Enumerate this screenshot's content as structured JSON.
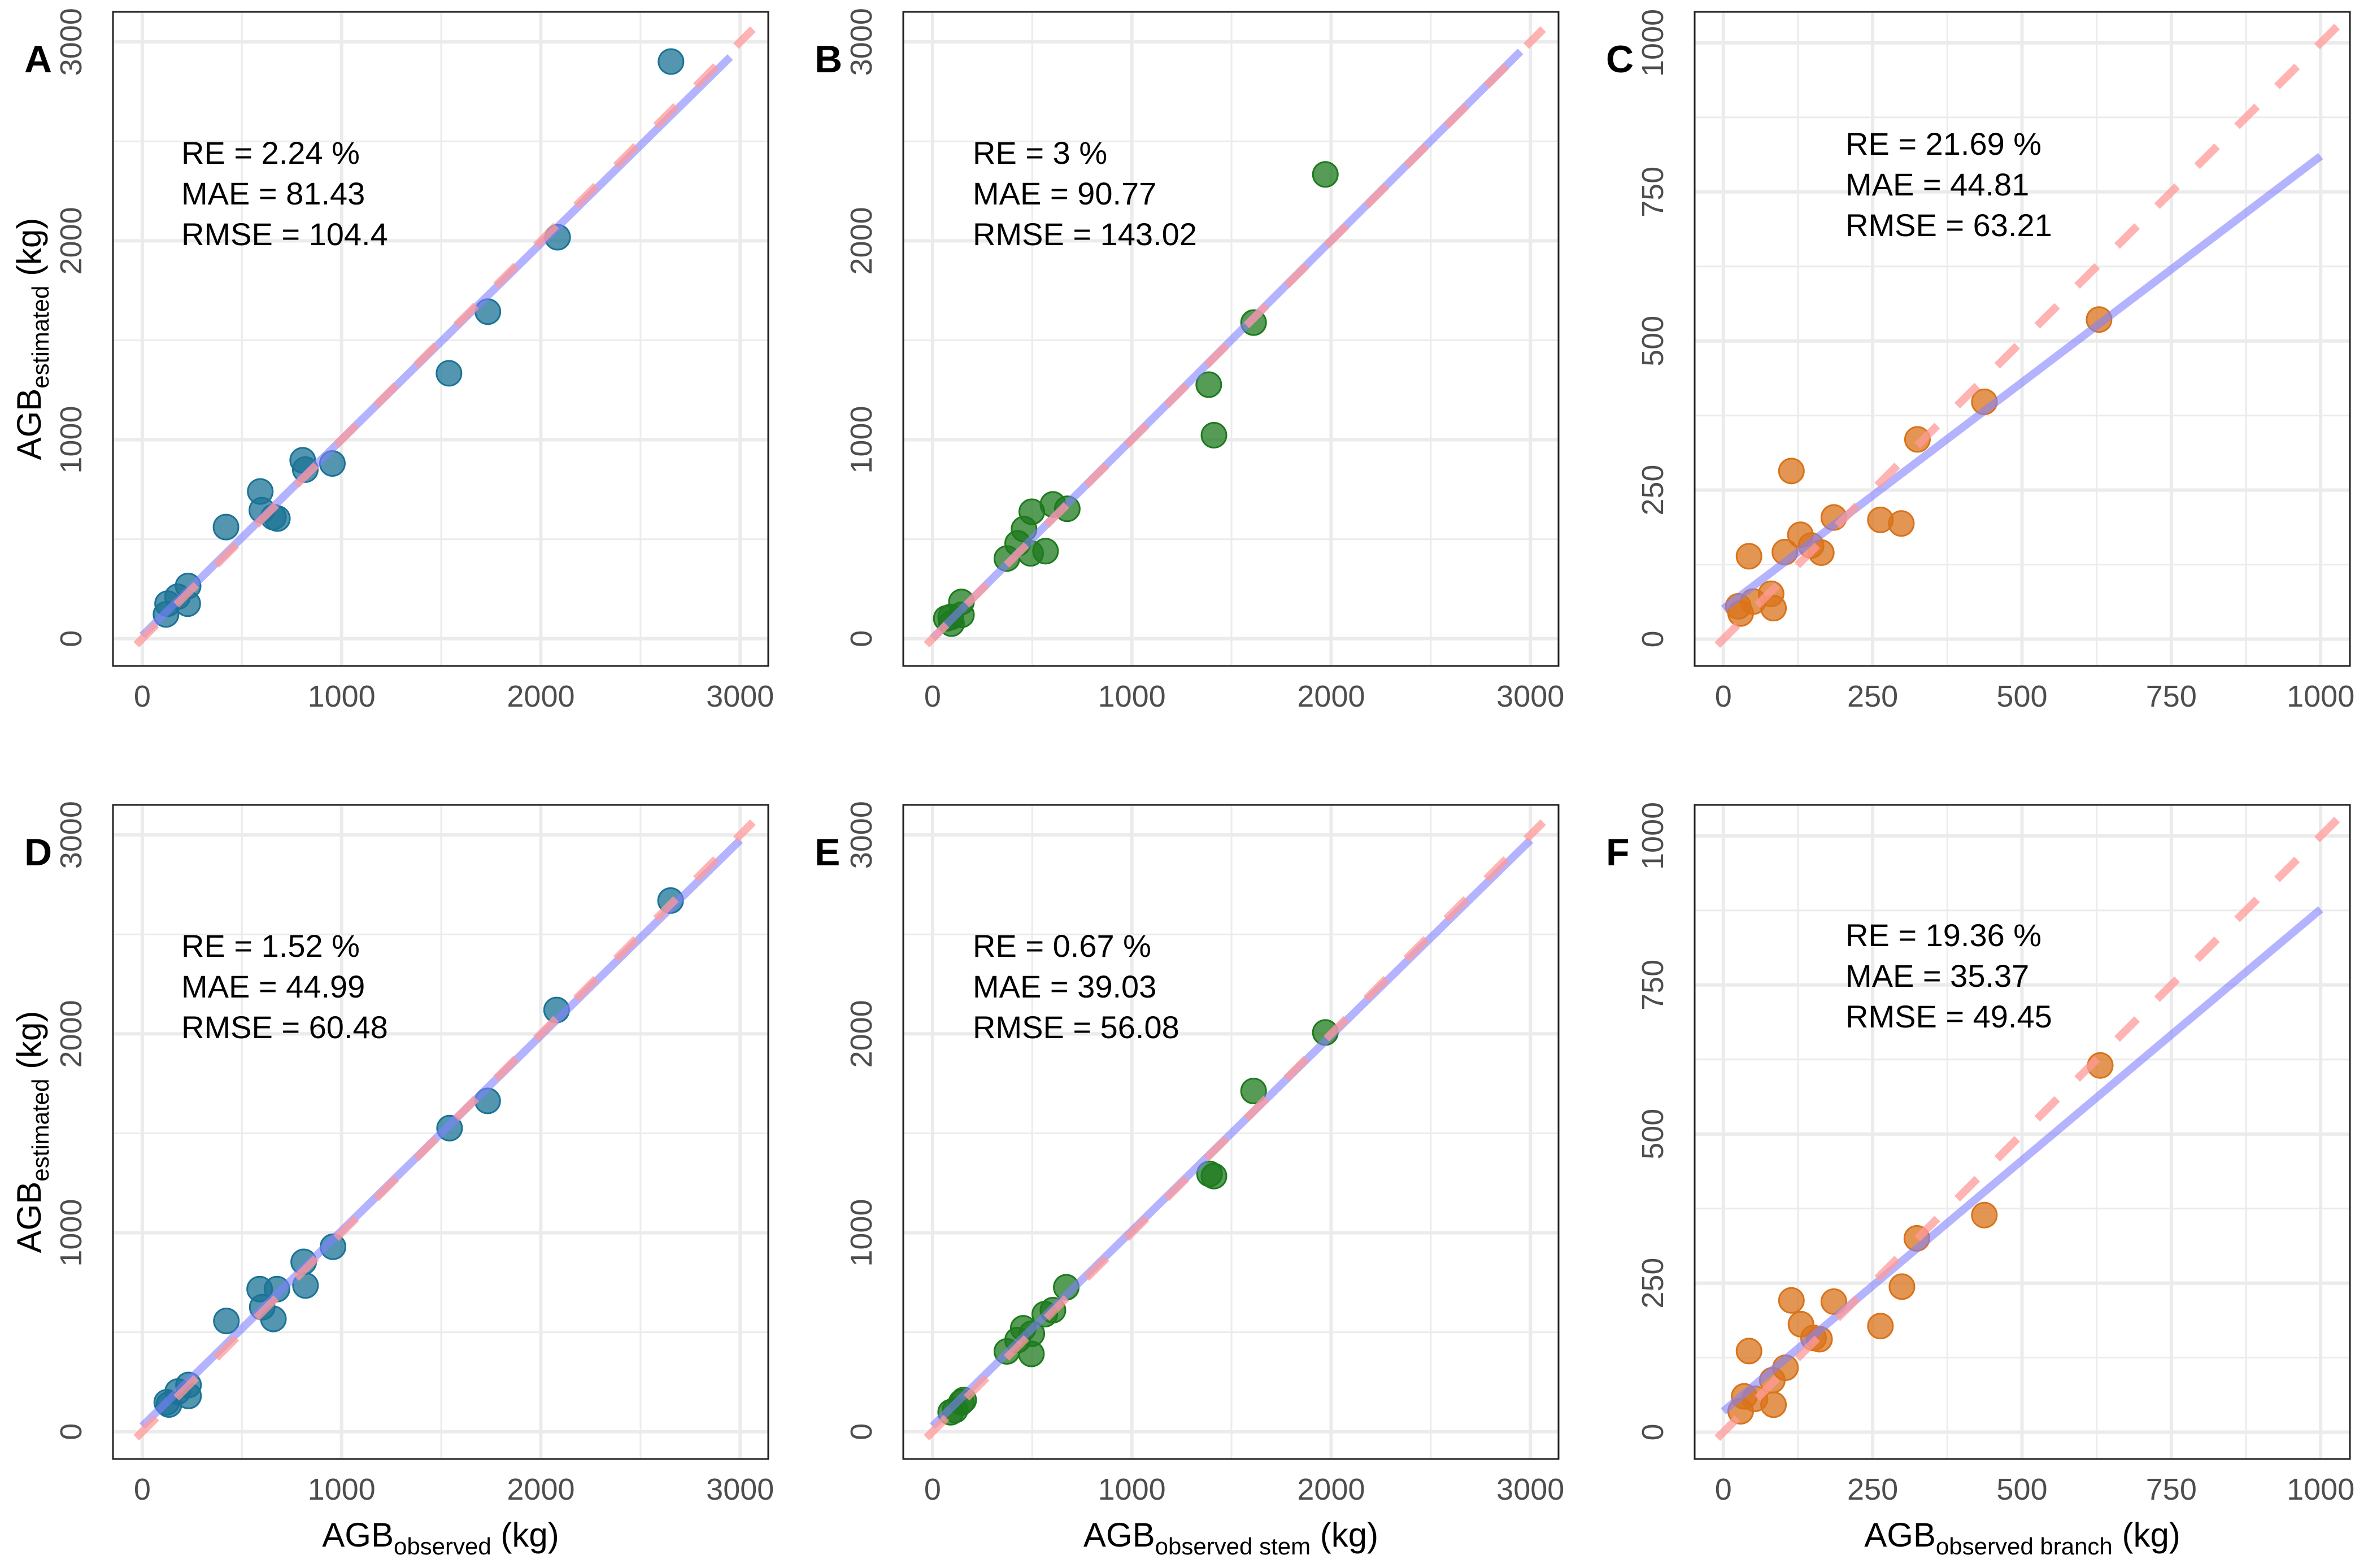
{
  "chart_data": [
    {
      "panel": "A",
      "type": "scatter",
      "xlim": [
        -147,
        3141
      ],
      "ylim": [
        -137,
        3151
      ],
      "xticks": [
        0,
        1000,
        2000,
        3000
      ],
      "yticks": [
        0,
        1000,
        2000,
        3000
      ],
      "xtick_labels": [
        "0",
        "1000",
        "2000",
        "3000"
      ],
      "ytick_labels": [
        "0",
        "1000",
        "2000",
        "3000"
      ],
      "grid": true,
      "point_color": "#1b7396",
      "points": [
        [
          2653,
          2901
        ],
        [
          2084,
          2018
        ],
        [
          1734,
          1644
        ],
        [
          1539,
          1334
        ],
        [
          954,
          881
        ],
        [
          805,
          897
        ],
        [
          818,
          850
        ],
        [
          592,
          740
        ],
        [
          600,
          646
        ],
        [
          658,
          611
        ],
        [
          678,
          604
        ],
        [
          420,
          561
        ],
        [
          230,
          265
        ],
        [
          228,
          176
        ],
        [
          127,
          176
        ],
        [
          177,
          211
        ],
        [
          119,
          122
        ]
      ],
      "fit_line": {
        "intercept": 15,
        "slope": 0.986,
        "x_range": [
          0,
          2950
        ]
      },
      "identity_line": {
        "x_range": [
          -30,
          3064
        ]
      },
      "annotations": [
        "RE = 2.24  %",
        "MAE = 81.43",
        "RMSE =  104.4"
      ],
      "ylabel": {
        "main": "AGB",
        "sub": "estimated",
        "unit": " (kg)"
      }
    },
    {
      "panel": "B",
      "type": "scatter",
      "xlim": [
        -147,
        3141
      ],
      "ylim": [
        -137,
        3151
      ],
      "xticks": [
        0,
        1000,
        2000,
        3000
      ],
      "yticks": [
        0,
        1000,
        2000,
        3000
      ],
      "xtick_labels": [
        "0",
        "1000",
        "2000",
        "3000"
      ],
      "ytick_labels": [
        "0",
        "1000",
        "2000",
        "3000"
      ],
      "grid": true,
      "point_color": "#1e7a1e",
      "points": [
        [
          1971,
          2334
        ],
        [
          1611,
          1589
        ],
        [
          1386,
          1277
        ],
        [
          1412,
          1023
        ],
        [
          498,
          638
        ],
        [
          604,
          675
        ],
        [
          676,
          653
        ],
        [
          459,
          551
        ],
        [
          427,
          479
        ],
        [
          373,
          403
        ],
        [
          492,
          429
        ],
        [
          567,
          440
        ],
        [
          145,
          185
        ],
        [
          91,
          109
        ],
        [
          145,
          120
        ],
        [
          95,
          76
        ],
        [
          69,
          102
        ]
      ],
      "fit_line": {
        "intercept": 2,
        "slope": 1.0,
        "x_range": [
          0,
          2950
        ]
      },
      "identity_line": {
        "x_range": [
          -30,
          3064
        ]
      },
      "annotations": [
        "RE = 3  %",
        "MAE = 90.77",
        "RMSE =  143.02"
      ]
    },
    {
      "panel": "C",
      "type": "scatter",
      "xlim": [
        -48,
        1049
      ],
      "ylim": [
        -45,
        1052
      ],
      "xticks": [
        0,
        250,
        500,
        750,
        1000
      ],
      "yticks": [
        0,
        250,
        500,
        750,
        1000
      ],
      "xtick_labels": [
        "0",
        "250",
        "500",
        "750",
        "1000"
      ],
      "ytick_labels": [
        "0",
        "250",
        "500",
        "750",
        "1000"
      ],
      "grid": true,
      "point_color": "#d9731a",
      "points": [
        [
          629,
          536
        ],
        [
          437,
          398
        ],
        [
          325,
          335
        ],
        [
          114,
          282
        ],
        [
          185,
          204
        ],
        [
          263,
          200
        ],
        [
          298,
          194
        ],
        [
          129,
          175
        ],
        [
          147,
          157
        ],
        [
          164,
          145
        ],
        [
          103,
          146
        ],
        [
          43,
          139
        ],
        [
          80,
          76
        ],
        [
          84,
          52
        ],
        [
          50,
          63
        ],
        [
          29,
          43
        ],
        [
          25,
          55
        ]
      ],
      "fit_line": {
        "intercept": 51,
        "slope": 0.759,
        "x_range": [
          0,
          1000
        ]
      },
      "identity_line": {
        "x_range": [
          -10,
          1030
        ]
      },
      "annotations": [
        "RE = 21.69 %",
        "MAE = 44.81",
        "RMSE =  63.21"
      ]
    },
    {
      "panel": "D",
      "type": "scatter",
      "xlim": [
        -147,
        3141
      ],
      "ylim": [
        -137,
        3151
      ],
      "xticks": [
        0,
        1000,
        2000,
        3000
      ],
      "yticks": [
        0,
        1000,
        2000,
        3000
      ],
      "xtick_labels": [
        "0",
        "1000",
        "2000",
        "3000"
      ],
      "ytick_labels": [
        "0",
        "1000",
        "2000",
        "3000"
      ],
      "grid": true,
      "point_color": "#1b7396",
      "points": [
        [
          2651,
          2670
        ],
        [
          2079,
          2120
        ],
        [
          1733,
          1663
        ],
        [
          1542,
          1526
        ],
        [
          957,
          930
        ],
        [
          810,
          854
        ],
        [
          819,
          735
        ],
        [
          589,
          717
        ],
        [
          676,
          717
        ],
        [
          602,
          626
        ],
        [
          658,
          567
        ],
        [
          422,
          557
        ],
        [
          232,
          235
        ],
        [
          232,
          180
        ],
        [
          178,
          202
        ],
        [
          123,
          148
        ],
        [
          134,
          137
        ]
      ],
      "fit_line": {
        "intercept": 28,
        "slope": 0.982,
        "x_range": [
          0,
          3000
        ]
      },
      "identity_line": {
        "x_range": [
          -30,
          3064
        ]
      },
      "annotations": [
        "RE = 1.52  %",
        "MAE = 44.99",
        "RMSE =  60.48"
      ],
      "xlabel": {
        "main": "AGB",
        "sub": "observed",
        "unit": " (kg)"
      },
      "ylabel": {
        "main": "AGB",
        "sub": "estimated",
        "unit": " (kg)"
      }
    },
    {
      "panel": "E",
      "type": "scatter",
      "xlim": [
        -147,
        3141
      ],
      "ylim": [
        -137,
        3151
      ],
      "xticks": [
        0,
        1000,
        2000,
        3000
      ],
      "yticks": [
        0,
        1000,
        2000,
        3000
      ],
      "xtick_labels": [
        "0",
        "1000",
        "2000",
        "3000"
      ],
      "ytick_labels": [
        "0",
        "1000",
        "2000",
        "3000"
      ],
      "grid": true,
      "point_color": "#1e7a1e",
      "points": [
        [
          1971,
          2007
        ],
        [
          1611,
          1713
        ],
        [
          1390,
          1296
        ],
        [
          1412,
          1285
        ],
        [
          671,
          726
        ],
        [
          604,
          611
        ],
        [
          563,
          591
        ],
        [
          455,
          520
        ],
        [
          498,
          493
        ],
        [
          427,
          461
        ],
        [
          373,
          404
        ],
        [
          496,
          391
        ],
        [
          145,
          148
        ],
        [
          91,
          98
        ],
        [
          156,
          159
        ],
        [
          113,
          109
        ]
      ],
      "fit_line": {
        "intercept": 28,
        "slope": 0.982,
        "x_range": [
          0,
          3000
        ]
      },
      "identity_line": {
        "x_range": [
          -30,
          3064
        ]
      },
      "annotations": [
        "RE = 0.67 %",
        "MAE = 39.03",
        "RMSE =  56.08"
      ],
      "xlabel": {
        "main": "AGB",
        "sub": "observed stem",
        "unit": " (kg)"
      }
    },
    {
      "panel": "F",
      "type": "scatter",
      "xlim": [
        -48,
        1049
      ],
      "ylim": [
        -45,
        1052
      ],
      "xticks": [
        0,
        250,
        500,
        750,
        1000
      ],
      "yticks": [
        0,
        250,
        500,
        750,
        1000
      ],
      "xtick_labels": [
        "0",
        "250",
        "500",
        "750",
        "1000"
      ],
      "ytick_labels": [
        "0",
        "250",
        "500",
        "750",
        "1000"
      ],
      "grid": true,
      "point_color": "#d9731a",
      "points": [
        [
          631,
          615
        ],
        [
          437,
          364
        ],
        [
          324,
          325
        ],
        [
          299,
          244
        ],
        [
          263,
          178
        ],
        [
          185,
          219
        ],
        [
          114,
          221
        ],
        [
          130,
          181
        ],
        [
          151,
          158
        ],
        [
          161,
          156
        ],
        [
          43,
          136
        ],
        [
          104,
          108
        ],
        [
          82,
          87
        ],
        [
          84,
          46
        ],
        [
          53,
          56
        ],
        [
          35,
          60
        ],
        [
          29,
          35
        ]
      ],
      "fit_line": {
        "intercept": 35,
        "slope": 0.842,
        "x_range": [
          0,
          1000
        ]
      },
      "identity_line": {
        "x_range": [
          -10,
          1030
        ]
      },
      "annotations": [
        "RE = 19.36 %",
        "MAE = 35.37",
        "RMSE =  49.45"
      ],
      "xlabel": {
        "main": "AGB",
        "sub": "observed branch",
        "unit": " (kg)"
      }
    }
  ],
  "colors": {
    "fit_line": "#8080ff",
    "identity_line": "#ff9a9a",
    "grid": "#ebebeb",
    "tick_text": "#4d4d4d"
  }
}
